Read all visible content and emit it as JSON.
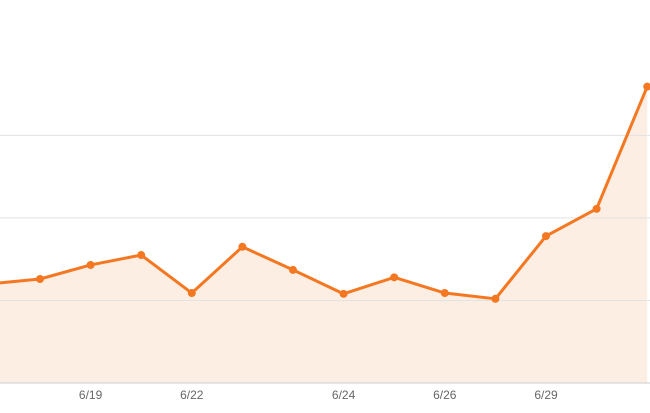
{
  "chart_data": {
    "type": "line",
    "categories": [
      null,
      null,
      "6/19",
      null,
      "6/22",
      null,
      null,
      "6/24",
      null,
      "6/26",
      null,
      "6/29",
      null,
      null
    ],
    "series": [
      {
        "color": "#f47721",
        "values": [
          1.2,
          1.26,
          1.43,
          1.55,
          1.09,
          1.65,
          1.37,
          1.08,
          1.28,
          1.09,
          1.02,
          1.78,
          2.11,
          3.59
        ]
      }
    ],
    "ylim": [
      0,
      4.64
    ],
    "yticks": [
      1,
      2,
      3
    ],
    "grid": true,
    "area": true,
    "area_color": "#fdeee4"
  }
}
